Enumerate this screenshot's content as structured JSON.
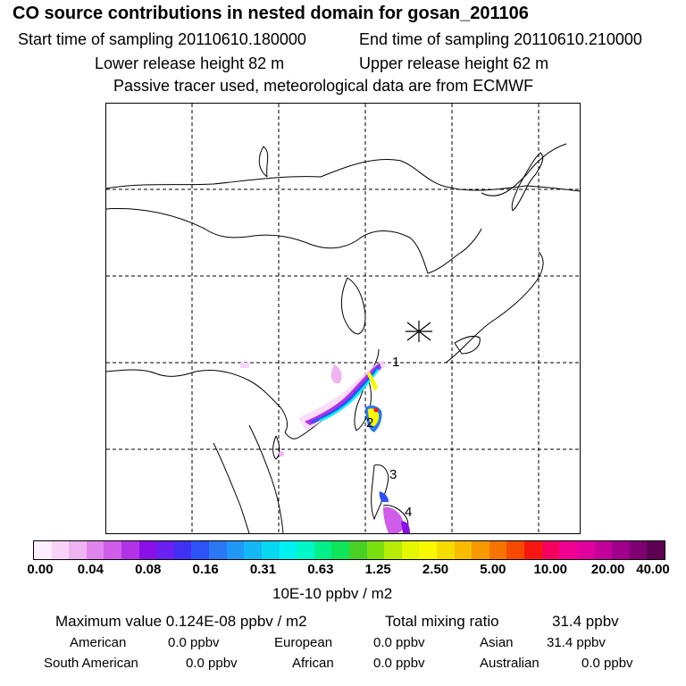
{
  "header": {
    "title": "CO  source contributions in nested domain for gosan_201106",
    "start_time": "Start time of sampling 20110610.180000",
    "end_time": "End time of sampling 20110610.210000",
    "lower_height": "Lower release height   82 m",
    "upper_height": "Upper release height   62 m",
    "tracer_info": "Passive tracer used, meteorological data are from ECMWF"
  },
  "map": {
    "release_site_icon": "asterisk-marker-icon",
    "labels": [
      "1",
      "2",
      "3",
      "4"
    ]
  },
  "colorbar": {
    "colors": [
      "#fdeefd",
      "#f7d4f7",
      "#efb3f1",
      "#e084ee",
      "#d05de9",
      "#b233e6",
      "#8a10e8",
      "#6a20f0",
      "#4030f4",
      "#2d52f6",
      "#2a78f4",
      "#1f99f6",
      "#14b8f4",
      "#06d8f0",
      "#00f2f0",
      "#00f7c8",
      "#02f08a",
      "#10e45a",
      "#4ad024",
      "#7ae010",
      "#b6ec08",
      "#e4f800",
      "#f8f800",
      "#f6dc00",
      "#f8bc00",
      "#f79a00",
      "#f67400",
      "#f64a00",
      "#f61810",
      "#f6005e",
      "#f00090",
      "#e0009e",
      "#c4009c",
      "#a0008c",
      "#7e0070",
      "#5e0052"
    ],
    "ticks": [
      "0.00",
      "0.04",
      "0.08",
      "0.16",
      "0.31",
      "0.63",
      "1.25",
      "2.50",
      "5.00",
      "10.00",
      "20.00",
      "40.00"
    ],
    "unit": "10E-10 ppbv / m2"
  },
  "summary": {
    "max_value": "Maximum value  0.124E-08 ppbv / m2",
    "total_mixing": "Total mixing ratio",
    "total_value": "31.4 ppbv",
    "american_label": "American",
    "american_value": "0.0 ppbv",
    "european_label": "European",
    "european_value": "0.0 ppbv",
    "asian_label": "Asian",
    "asian_value": "31.4 ppbv",
    "south_american_label": "South American",
    "south_american_value": "0.0 ppbv",
    "african_label": "African",
    "african_value": "0.0 ppbv",
    "australian_label": "Australian",
    "australian_value": "0.0 ppbv"
  }
}
